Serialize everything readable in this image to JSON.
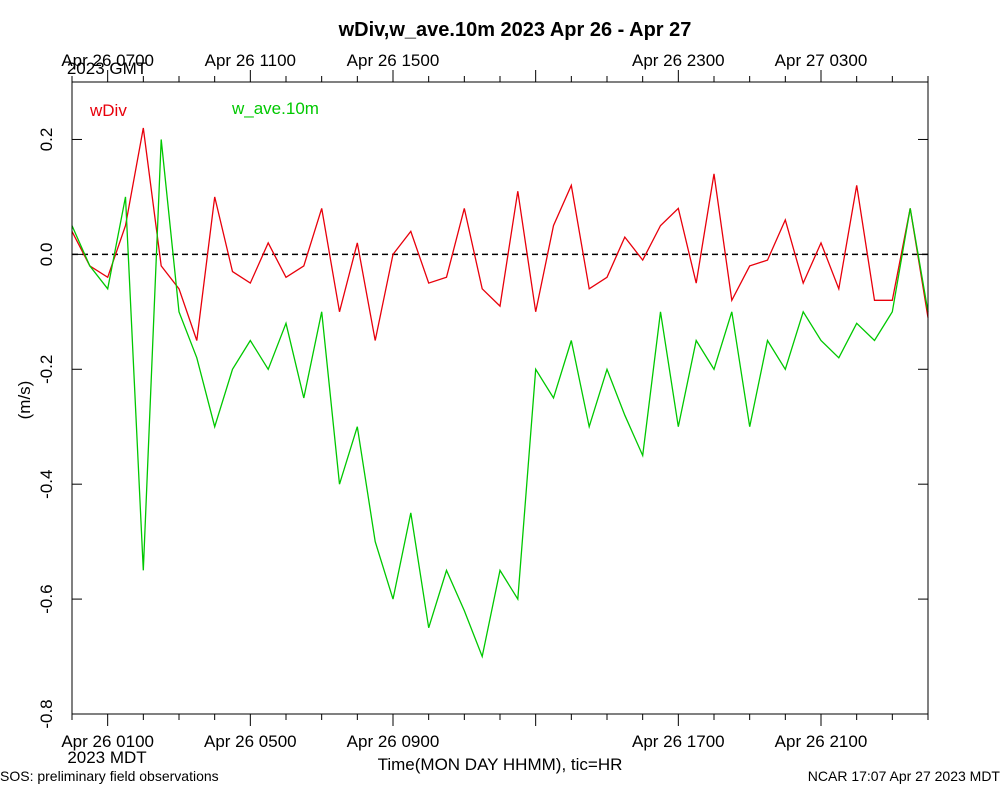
{
  "chart_data": {
    "type": "line",
    "title": "wDiv,w_ave.10m 2023 Apr 26 - Apr 27",
    "xlabel": "Time(MON DAY HHMM), tic=HR",
    "ylabel": "(m/s)",
    "ylim": [
      -0.8,
      0.3
    ],
    "yticks": [
      -0.8,
      -0.6,
      -0.4,
      -0.2,
      0.0,
      0.2
    ],
    "ytick_labels": [
      "-0.8",
      "-0.6",
      "-0.4",
      "-0.2",
      "0.0",
      "0.2"
    ],
    "x_unit": "hours",
    "xlim_mdt": [
      "Apr 26 0000",
      "Apr 27 0000"
    ],
    "grid": false,
    "reference_line": {
      "y": 0.0,
      "style": "dashed"
    },
    "bottom_axis": {
      "timezone_label": "2023 MDT",
      "major_ticks": [
        "Apr 26 0100",
        "Apr 26 0500",
        "Apr 26 0900",
        "Apr 26 1700",
        "Apr 26 2100"
      ]
    },
    "top_axis": {
      "timezone_label": "2023 GMT",
      "major_ticks": [
        "Apr 26 0700",
        "Apr 26 1100",
        "Apr 26 1500",
        "Apr 26 2300",
        "Apr 27 0300"
      ]
    },
    "legend_placement": "top-left",
    "series": [
      {
        "name": "wDiv",
        "color": "#e8000b",
        "x": [
          "Apr 26 0000",
          "Apr 26 0030",
          "Apr 26 0100",
          "Apr 26 0130",
          "Apr 26 0200",
          "Apr 26 0230",
          "Apr 26 0300",
          "Apr 26 0330",
          "Apr 26 0400",
          "Apr 26 0430",
          "Apr 26 0500",
          "Apr 26 0530",
          "Apr 26 0600",
          "Apr 26 0630",
          "Apr 26 0700",
          "Apr 26 0730",
          "Apr 26 0800",
          "Apr 26 0830",
          "Apr 26 0900",
          "Apr 26 0930",
          "Apr 26 1000",
          "Apr 26 1030",
          "Apr 26 1100",
          "Apr 26 1130",
          "Apr 26 1200",
          "Apr 26 1230",
          "Apr 26 1300",
          "Apr 26 1330",
          "Apr 26 1400",
          "Apr 26 1430",
          "Apr 26 1500",
          "Apr 26 1530",
          "Apr 26 1600",
          "Apr 26 1630",
          "Apr 26 1700",
          "Apr 26 1730",
          "Apr 26 1800",
          "Apr 26 1830",
          "Apr 26 1900",
          "Apr 26 1930",
          "Apr 26 2000",
          "Apr 26 2030",
          "Apr 26 2100",
          "Apr 26 2130",
          "Apr 26 2200",
          "Apr 26 2230",
          "Apr 26 2300",
          "Apr 26 2330",
          "Apr 27 0000"
        ],
        "y": [
          0.04,
          -0.02,
          -0.04,
          0.05,
          0.22,
          -0.02,
          -0.06,
          -0.15,
          0.1,
          -0.03,
          -0.05,
          0.02,
          -0.04,
          -0.02,
          0.08,
          -0.1,
          0.02,
          -0.15,
          0.0,
          0.04,
          -0.05,
          -0.04,
          0.08,
          -0.06,
          -0.09,
          0.11,
          -0.1,
          0.05,
          0.12,
          -0.06,
          -0.04,
          0.03,
          -0.01,
          0.05,
          0.08,
          -0.05,
          0.14,
          -0.08,
          -0.02,
          -0.01,
          0.06,
          -0.05,
          0.02,
          -0.06,
          0.12,
          -0.08,
          -0.08,
          0.08,
          -0.11
        ]
      },
      {
        "name": "w_ave.10m",
        "color": "#00c800",
        "x": [
          "Apr 26 0000",
          "Apr 26 0030",
          "Apr 26 0100",
          "Apr 26 0130",
          "Apr 26 0200",
          "Apr 26 0230",
          "Apr 26 0300",
          "Apr 26 0330",
          "Apr 26 0400",
          "Apr 26 0430",
          "Apr 26 0500",
          "Apr 26 0530",
          "Apr 26 0600",
          "Apr 26 0630",
          "Apr 26 0700",
          "Apr 26 0730",
          "Apr 26 0800",
          "Apr 26 0830",
          "Apr 26 0900",
          "Apr 26 0930",
          "Apr 26 1000",
          "Apr 26 1030",
          "Apr 26 1100",
          "Apr 26 1130",
          "Apr 26 1200",
          "Apr 26 1230",
          "Apr 26 1300",
          "Apr 26 1330",
          "Apr 26 1400",
          "Apr 26 1430",
          "Apr 26 1500",
          "Apr 26 1530",
          "Apr 26 1600",
          "Apr 26 1630",
          "Apr 26 1700",
          "Apr 26 1730",
          "Apr 26 1800",
          "Apr 26 1830",
          "Apr 26 1900",
          "Apr 26 1930",
          "Apr 26 2000",
          "Apr 26 2030",
          "Apr 26 2100",
          "Apr 26 2130",
          "Apr 26 2200",
          "Apr 26 2230",
          "Apr 26 2300",
          "Apr 26 2330",
          "Apr 27 0000"
        ],
        "y": [
          0.05,
          -0.02,
          -0.06,
          0.1,
          -0.55,
          0.2,
          -0.1,
          -0.18,
          -0.3,
          -0.2,
          -0.15,
          -0.2,
          -0.12,
          -0.25,
          -0.1,
          -0.4,
          -0.3,
          -0.5,
          -0.6,
          -0.45,
          -0.65,
          -0.55,
          -0.62,
          -0.7,
          -0.55,
          -0.6,
          -0.2,
          -0.25,
          -0.15,
          -0.3,
          -0.2,
          -0.28,
          -0.35,
          -0.1,
          -0.3,
          -0.15,
          -0.2,
          -0.1,
          -0.3,
          -0.15,
          -0.2,
          -0.1,
          -0.15,
          -0.18,
          -0.12,
          -0.15,
          -0.1,
          0.08,
          -0.1
        ]
      }
    ]
  },
  "footer": {
    "left": "SOS: preliminary field observations",
    "right": "NCAR 17:07 Apr 27 2023 MDT"
  }
}
